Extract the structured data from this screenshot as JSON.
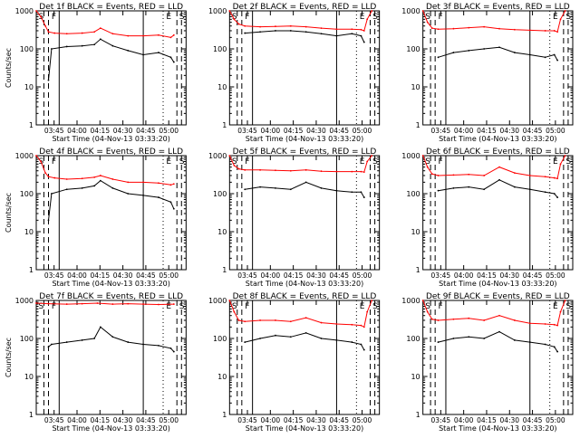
{
  "figure": {
    "ylabel": "Counts/sec",
    "xlabel": "Start Time (04-Nov-13 03:33:20)",
    "y_ticks": [
      "1",
      "10",
      "100",
      "1000"
    ],
    "x_ticks": [
      "03:45",
      "04:00",
      "04:15",
      "04:30",
      "04:45",
      "05:00"
    ],
    "marker_labels": [
      "S",
      "F",
      "E",
      "S"
    ],
    "colors": {
      "events": "#000000",
      "lld": "#ff0000",
      "axes": "#000000"
    }
  },
  "chart_data": [
    {
      "type": "line",
      "title": "Det 1f BLACK = Events, RED = LLD",
      "yscale": "log",
      "ylim": [
        1,
        1000
      ],
      "x_unit": "minutes since 03:33:20",
      "xlim": [
        0,
        98
      ],
      "series": [
        {
          "name": "Events",
          "color": "#000000",
          "x": [
            8,
            10,
            20,
            30,
            38,
            42,
            50,
            60,
            70,
            80,
            88,
            90
          ],
          "values": [
            15,
            100,
            115,
            120,
            130,
            180,
            120,
            90,
            70,
            80,
            60,
            45
          ]
        },
        {
          "name": "LLD",
          "color": "#ff0000",
          "x": [
            0,
            3,
            6,
            8,
            12,
            20,
            30,
            38,
            42,
            50,
            60,
            70,
            80,
            88,
            90
          ],
          "values": [
            1000,
            700,
            400,
            280,
            260,
            250,
            260,
            280,
            350,
            250,
            220,
            220,
            230,
            200,
            230
          ]
        }
      ]
    },
    {
      "type": "line",
      "title": "Det 2f BLACK = Events, RED = LLD",
      "yscale": "log",
      "ylim": [
        1,
        1000
      ],
      "x_unit": "minutes since 03:33:20",
      "xlim": [
        0,
        98
      ],
      "series": [
        {
          "name": "Events",
          "color": "#000000",
          "x": [
            10,
            20,
            30,
            40,
            50,
            60,
            70,
            80,
            86,
            88
          ],
          "values": [
            260,
            280,
            300,
            300,
            280,
            250,
            220,
            250,
            220,
            150
          ]
        },
        {
          "name": "LLD",
          "color": "#ff0000",
          "x": [
            0,
            3,
            6,
            10,
            20,
            30,
            40,
            50,
            60,
            70,
            80,
            86,
            88,
            90,
            93
          ],
          "values": [
            1000,
            600,
            450,
            400,
            380,
            390,
            400,
            380,
            350,
            330,
            330,
            320,
            300,
            600,
            1000
          ]
        }
      ]
    },
    {
      "type": "line",
      "title": "Det 3f BLACK = Events, RED = LLD",
      "yscale": "log",
      "ylim": [
        1,
        1000
      ],
      "x_unit": "minutes since 03:33:20",
      "xlim": [
        0,
        98
      ],
      "series": [
        {
          "name": "Events",
          "color": "#000000",
          "x": [
            10,
            20,
            30,
            40,
            50,
            60,
            70,
            80,
            86,
            88
          ],
          "values": [
            60,
            80,
            90,
            100,
            110,
            80,
            70,
            60,
            70,
            50
          ]
        },
        {
          "name": "LLD",
          "color": "#ff0000",
          "x": [
            0,
            3,
            6,
            10,
            20,
            30,
            40,
            50,
            60,
            70,
            80,
            86,
            88,
            90,
            93
          ],
          "values": [
            1000,
            500,
            350,
            330,
            340,
            360,
            380,
            340,
            320,
            310,
            300,
            300,
            280,
            600,
            1000
          ]
        }
      ]
    },
    {
      "type": "line",
      "title": "Det 4f BLACK = Events, RED = LLD",
      "yscale": "log",
      "ylim": [
        1,
        1000
      ],
      "x_unit": "minutes since 03:33:20",
      "xlim": [
        0,
        98
      ],
      "series": [
        {
          "name": "Events",
          "color": "#000000",
          "x": [
            8,
            10,
            20,
            30,
            38,
            42,
            50,
            60,
            70,
            80,
            88,
            90
          ],
          "values": [
            20,
            100,
            130,
            140,
            160,
            220,
            140,
            100,
            90,
            80,
            60,
            40
          ]
        },
        {
          "name": "LLD",
          "color": "#ff0000",
          "x": [
            0,
            3,
            6,
            8,
            12,
            20,
            30,
            38,
            42,
            50,
            60,
            70,
            80,
            88,
            90
          ],
          "values": [
            1000,
            700,
            350,
            280,
            260,
            240,
            250,
            270,
            300,
            240,
            200,
            200,
            190,
            170,
            180
          ]
        }
      ]
    },
    {
      "type": "line",
      "title": "Det 5f BLACK = Events, RED = LLD",
      "yscale": "log",
      "ylim": [
        1,
        1000
      ],
      "x_unit": "minutes since 03:33:20",
      "xlim": [
        0,
        98
      ],
      "series": [
        {
          "name": "Events",
          "color": "#000000",
          "x": [
            10,
            20,
            30,
            40,
            50,
            60,
            70,
            80,
            86,
            88
          ],
          "values": [
            130,
            150,
            140,
            130,
            200,
            140,
            120,
            110,
            110,
            80
          ]
        },
        {
          "name": "LLD",
          "color": "#ff0000",
          "x": [
            0,
            3,
            6,
            10,
            20,
            30,
            40,
            50,
            60,
            70,
            80,
            86,
            88,
            90,
            93
          ],
          "values": [
            1000,
            550,
            450,
            420,
            420,
            410,
            400,
            420,
            390,
            380,
            380,
            380,
            370,
            700,
            1000
          ]
        }
      ]
    },
    {
      "type": "line",
      "title": "Det 6f BLACK = Events, RED = LLD",
      "yscale": "log",
      "ylim": [
        1,
        1000
      ],
      "x_unit": "minutes since 03:33:20",
      "xlim": [
        0,
        98
      ],
      "series": [
        {
          "name": "Events",
          "color": "#000000",
          "x": [
            10,
            20,
            30,
            40,
            50,
            60,
            70,
            80,
            86,
            88
          ],
          "values": [
            120,
            140,
            150,
            130,
            230,
            150,
            130,
            110,
            100,
            80
          ]
        },
        {
          "name": "LLD",
          "color": "#ff0000",
          "x": [
            0,
            3,
            6,
            10,
            20,
            30,
            40,
            50,
            60,
            70,
            80,
            86,
            88,
            90,
            93
          ],
          "values": [
            1000,
            500,
            330,
            300,
            310,
            320,
            300,
            500,
            350,
            300,
            280,
            260,
            250,
            600,
            1000
          ]
        }
      ]
    },
    {
      "type": "line",
      "title": "Det 7f BLACK = Events, RED = LLD",
      "yscale": "log",
      "ylim": [
        1,
        1000
      ],
      "x_unit": "minutes since 03:33:20",
      "xlim": [
        0,
        98
      ],
      "series": [
        {
          "name": "Events",
          "color": "#000000",
          "x": [
            8,
            10,
            20,
            30,
            38,
            42,
            50,
            60,
            70,
            80,
            88,
            90
          ],
          "values": [
            60,
            70,
            80,
            90,
            100,
            200,
            110,
            80,
            70,
            65,
            55,
            45
          ]
        },
        {
          "name": "LLD",
          "color": "#ff0000",
          "x": [
            0,
            8,
            20,
            30,
            40,
            50,
            60,
            70,
            80,
            90
          ],
          "values": [
            850,
            820,
            800,
            820,
            850,
            800,
            820,
            800,
            780,
            800
          ]
        }
      ]
    },
    {
      "type": "line",
      "title": "Det 8f BLACK = Events, RED = LLD",
      "yscale": "log",
      "ylim": [
        1,
        1000
      ],
      "x_unit": "minutes since 03:33:20",
      "xlim": [
        0,
        98
      ],
      "series": [
        {
          "name": "Events",
          "color": "#000000",
          "x": [
            10,
            20,
            30,
            40,
            50,
            60,
            70,
            80,
            86,
            88
          ],
          "values": [
            80,
            100,
            120,
            110,
            140,
            100,
            90,
            80,
            70,
            50
          ]
        },
        {
          "name": "LLD",
          "color": "#ff0000",
          "x": [
            0,
            3,
            6,
            10,
            20,
            30,
            40,
            50,
            60,
            70,
            80,
            86,
            88,
            90,
            93
          ],
          "values": [
            1000,
            500,
            300,
            280,
            300,
            300,
            280,
            350,
            260,
            240,
            230,
            220,
            200,
            500,
            1000
          ]
        }
      ]
    },
    {
      "type": "line",
      "title": "Det 9f BLACK = Events, RED = LLD",
      "yscale": "log",
      "ylim": [
        1,
        1000
      ],
      "x_unit": "minutes since 03:33:20",
      "xlim": [
        0,
        98
      ],
      "series": [
        {
          "name": "Events",
          "color": "#000000",
          "x": [
            10,
            20,
            30,
            40,
            50,
            60,
            70,
            80,
            86,
            88
          ],
          "values": [
            80,
            100,
            110,
            100,
            150,
            90,
            80,
            70,
            60,
            45
          ]
        },
        {
          "name": "LLD",
          "color": "#ff0000",
          "x": [
            0,
            3,
            6,
            10,
            20,
            30,
            40,
            50,
            60,
            70,
            80,
            86,
            88,
            90,
            93
          ],
          "values": [
            1000,
            500,
            320,
            300,
            320,
            340,
            300,
            400,
            300,
            250,
            240,
            230,
            220,
            500,
            1000
          ]
        }
      ]
    }
  ]
}
